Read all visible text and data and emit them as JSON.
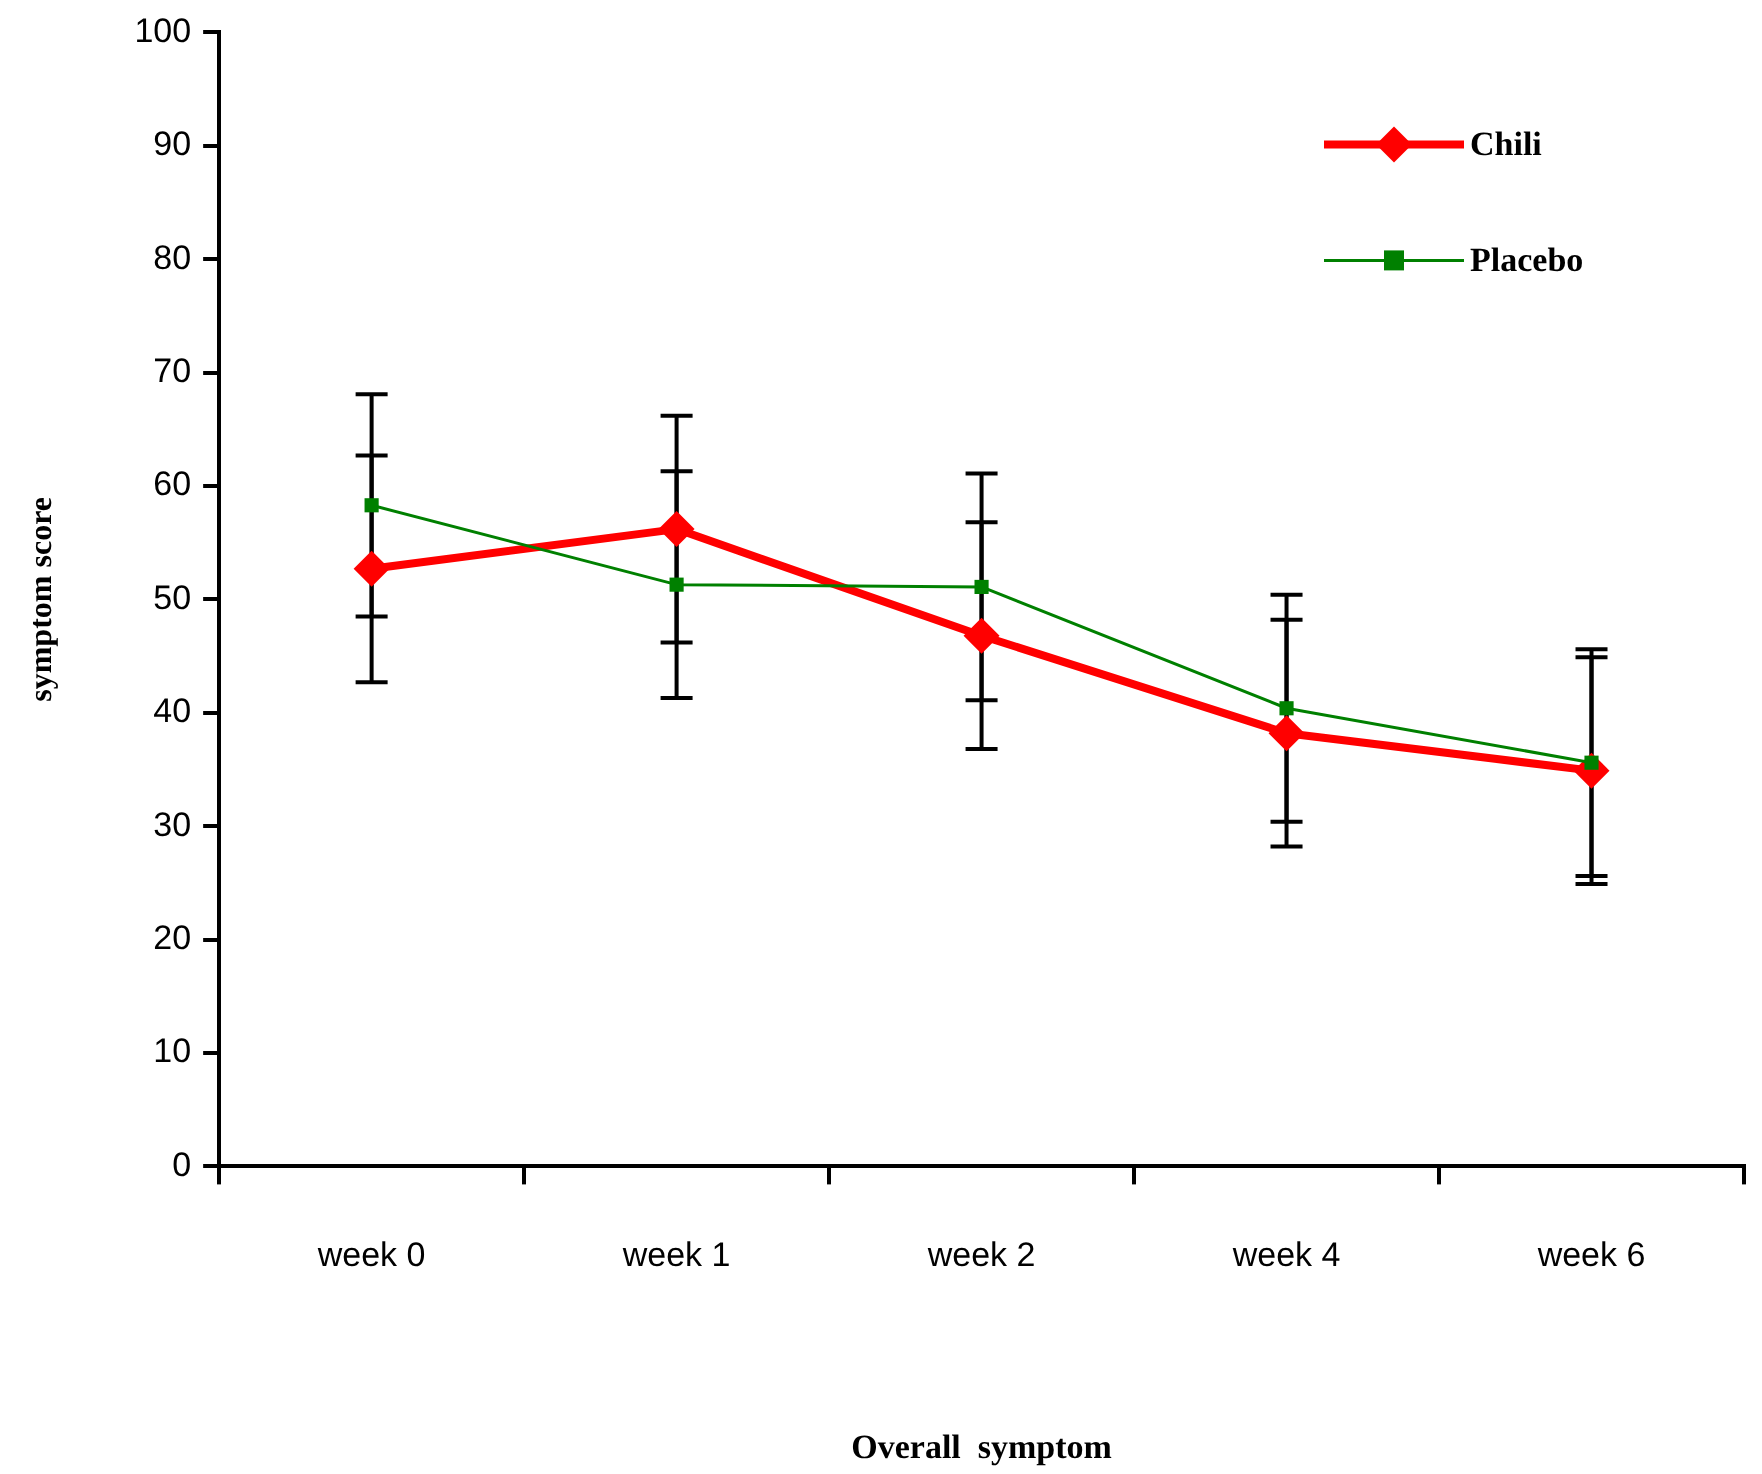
{
  "chart_data": {
    "type": "line",
    "xlabel": "Overall  symptom",
    "ylabel": "symptom score",
    "categories": [
      "week 0",
      "week 1",
      "week 2",
      "week 4",
      "week 6"
    ],
    "series": [
      {
        "name": "Chili",
        "color": "#ff0000",
        "marker": "diamond",
        "values": [
          52.7,
          56.2,
          46.8,
          38.2,
          34.9
        ],
        "errors": [
          10,
          10,
          10,
          10,
          10
        ]
      },
      {
        "name": "Placebo",
        "color": "#008000",
        "marker": "square",
        "values": [
          58.3,
          51.3,
          51.1,
          40.4,
          35.6
        ],
        "errors": [
          9.8,
          10,
          10,
          10,
          10
        ]
      }
    ],
    "ylim": [
      0,
      100
    ],
    "yticks": [
      0,
      10,
      20,
      30,
      40,
      50,
      60,
      70,
      80,
      90,
      100
    ],
    "grid": false,
    "legend": "top right"
  }
}
